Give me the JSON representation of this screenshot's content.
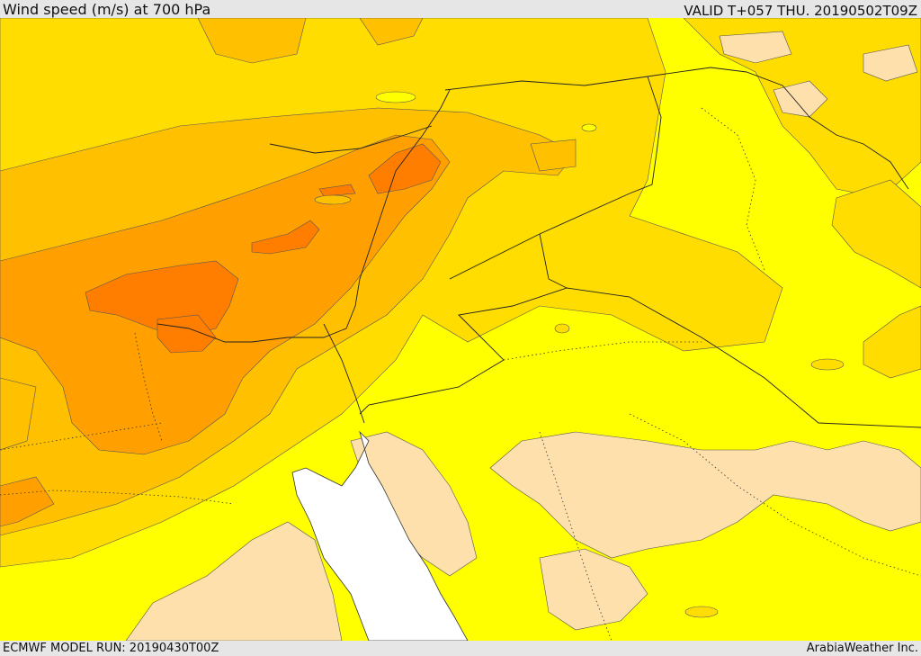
{
  "header": {
    "title": "Wind speed (m/s) at 700 hPa",
    "valid": "VALID T+057 THU. 20190502T09Z"
  },
  "footer": {
    "model_run": "ECMWF MODEL RUN: 20190430T00Z",
    "credit": "ArabiaWeather Inc."
  },
  "colors": {
    "very_weak": "#fde0ab",
    "weak": "#ffff00",
    "moderate": "#ffdd00",
    "strong": "#ffc000",
    "stronger": "#ffa000",
    "strongest": "#ff7e00",
    "sea": "#ffffff"
  }
}
